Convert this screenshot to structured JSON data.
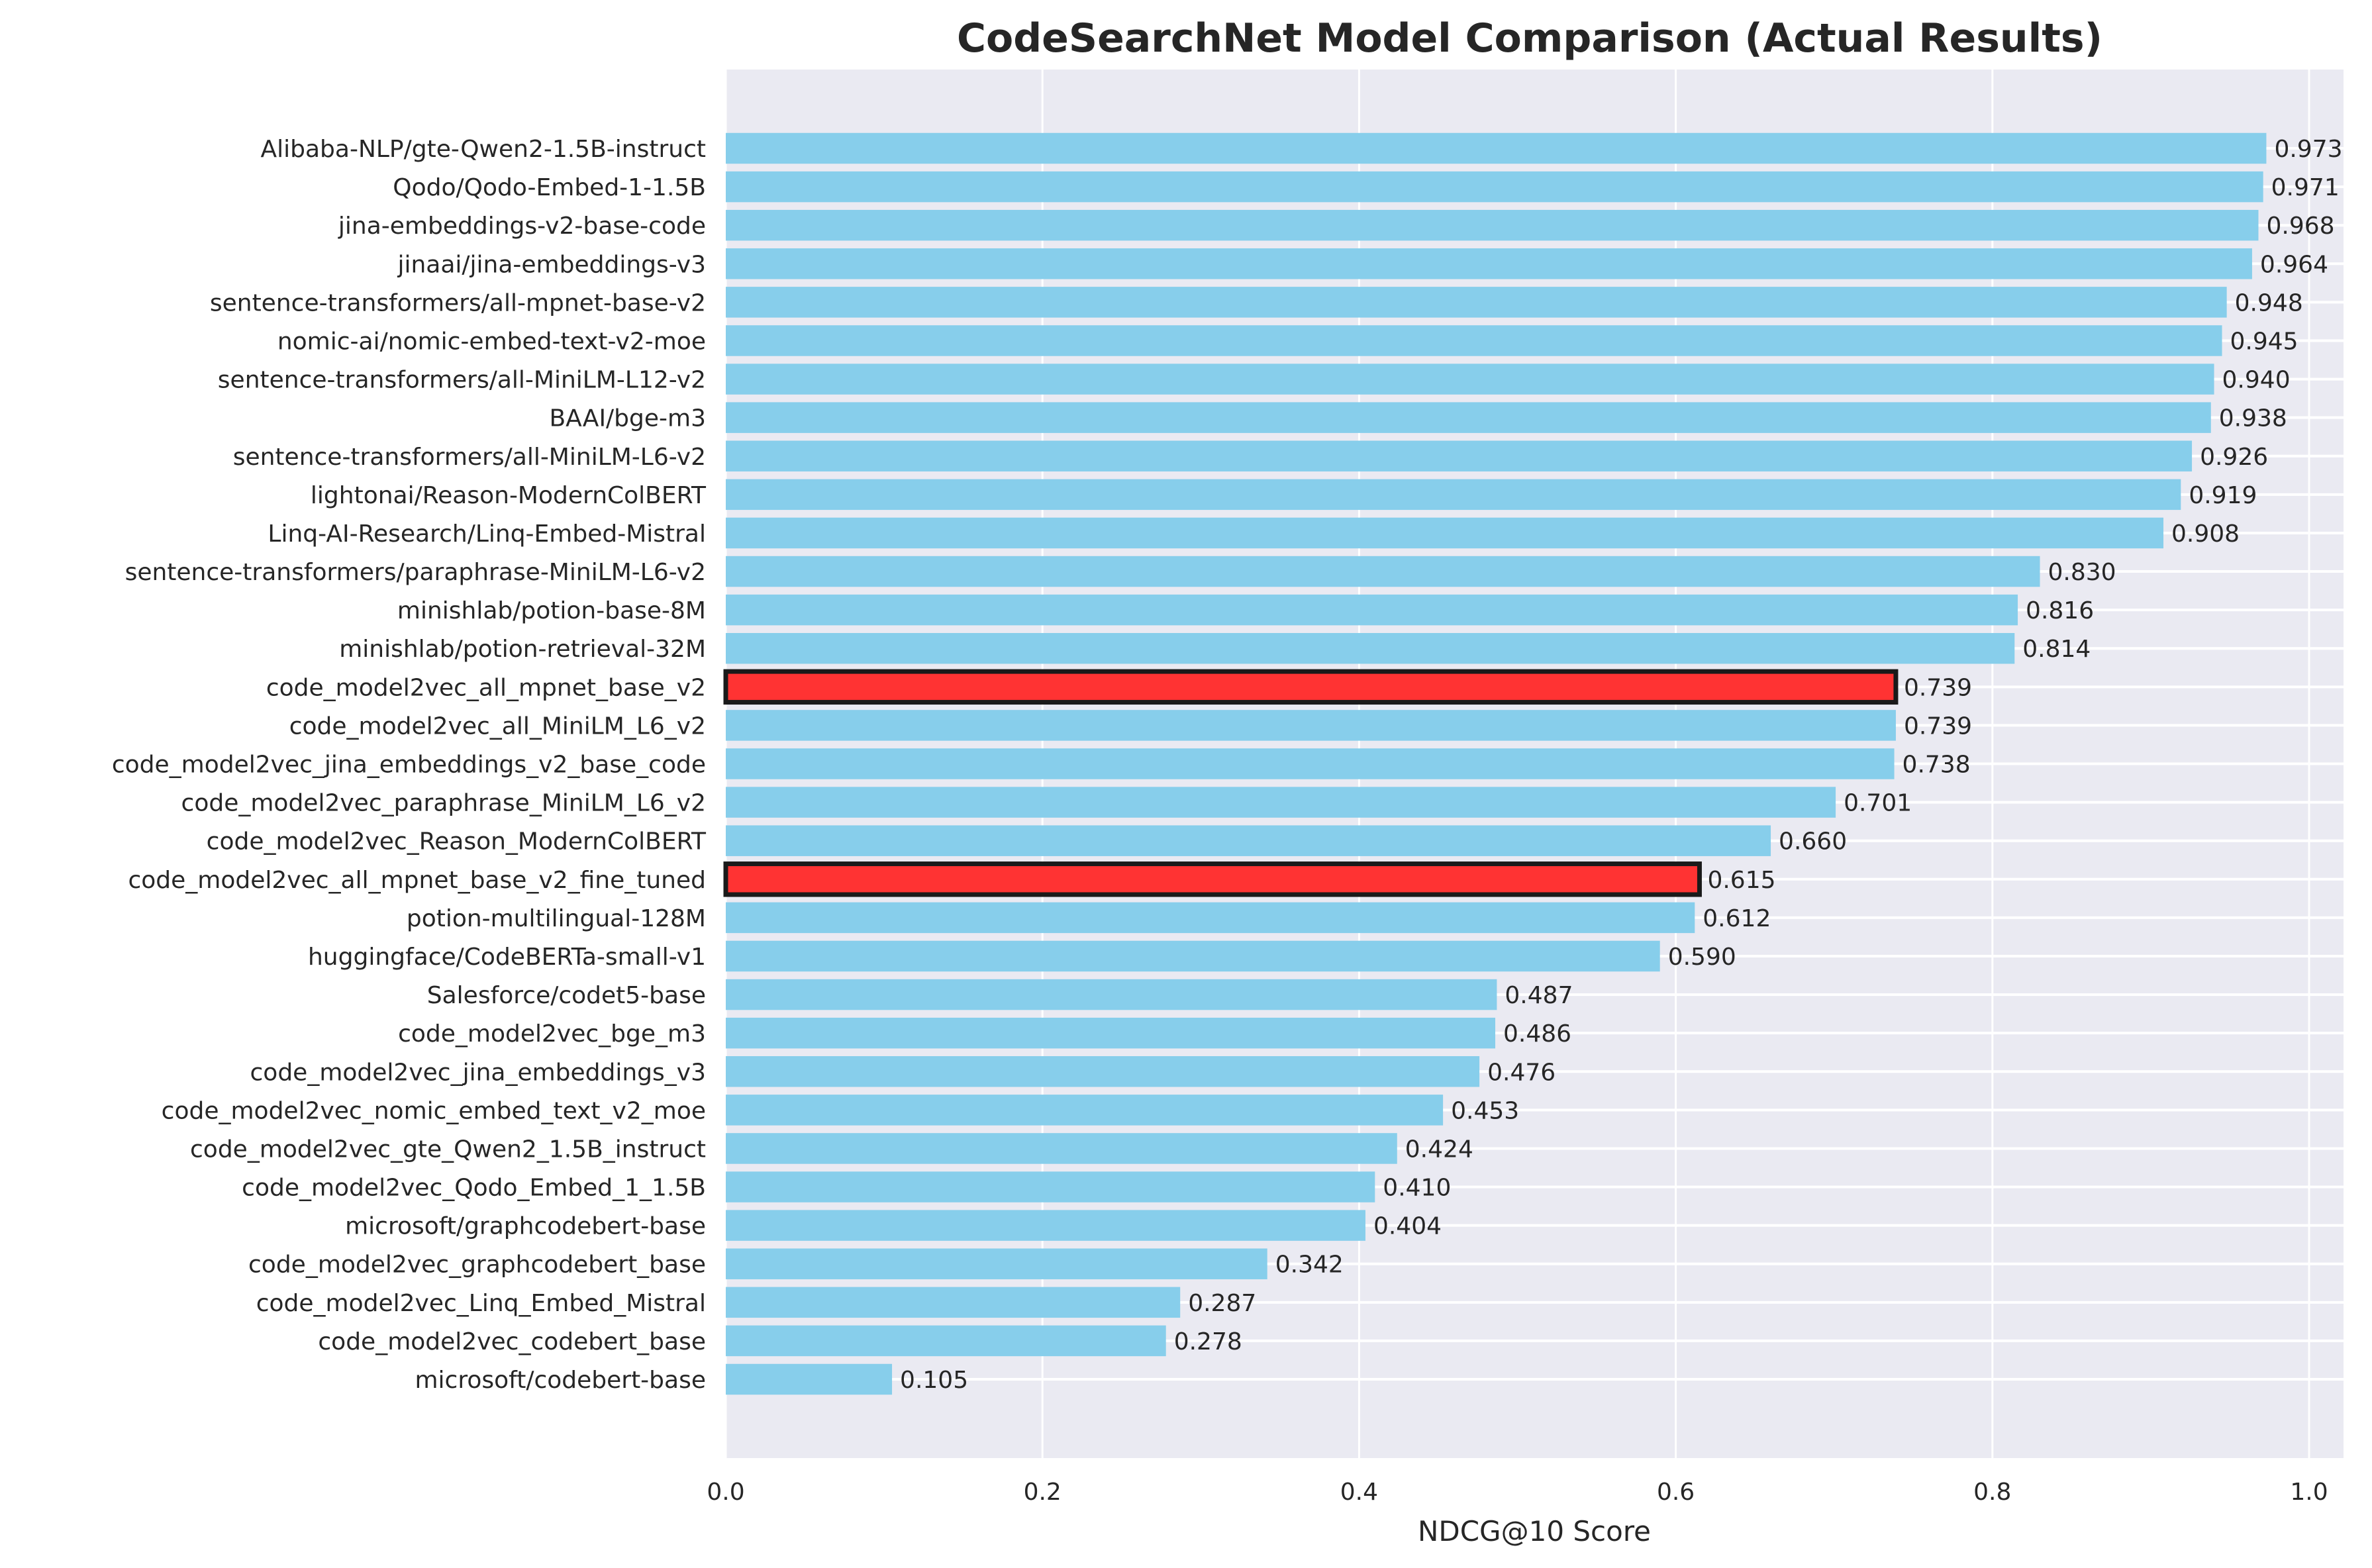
{
  "chart_data": {
    "type": "bar",
    "orientation": "horizontal",
    "title": "CodeSearchNet Model Comparison (Actual Results)",
    "xlabel": "NDCG@10 Score",
    "ylabel": "",
    "xlim": [
      0,
      1.02
    ],
    "xticks": [
      "0.0",
      "0.2",
      "0.4",
      "0.6",
      "0.8",
      "1.0"
    ],
    "grid": true,
    "colors": {
      "default": "#87CEEB",
      "highlight": "#FF3333",
      "highlight_edge": "#1a1a1a",
      "background": "#EAEAF2"
    },
    "categories": [
      "Alibaba-NLP/gte-Qwen2-1.5B-instruct",
      "Qodo/Qodo-Embed-1-1.5B",
      "jina-embeddings-v2-base-code",
      "jinaai/jina-embeddings-v3",
      "sentence-transformers/all-mpnet-base-v2",
      "nomic-ai/nomic-embed-text-v2-moe",
      "sentence-transformers/all-MiniLM-L12-v2",
      "BAAI/bge-m3",
      "sentence-transformers/all-MiniLM-L6-v2",
      "lightonai/Reason-ModernColBERT",
      "Linq-AI-Research/Linq-Embed-Mistral",
      "sentence-transformers/paraphrase-MiniLM-L6-v2",
      "minishlab/potion-base-8M",
      "minishlab/potion-retrieval-32M",
      "code_model2vec_all_mpnet_base_v2",
      "code_model2vec_all_MiniLM_L6_v2",
      "code_model2vec_jina_embeddings_v2_base_code",
      "code_model2vec_paraphrase_MiniLM_L6_v2",
      "code_model2vec_Reason_ModernColBERT",
      "code_model2vec_all_mpnet_base_v2_fine_tuned",
      "potion-multilingual-128M",
      "huggingface/CodeBERTa-small-v1",
      "Salesforce/codet5-base",
      "code_model2vec_bge_m3",
      "code_model2vec_jina_embeddings_v3",
      "code_model2vec_nomic_embed_text_v2_moe",
      "code_model2vec_gte_Qwen2_1.5B_instruct",
      "code_model2vec_Qodo_Embed_1_1.5B",
      "microsoft/graphcodebert-base",
      "code_model2vec_graphcodebert_base",
      "code_model2vec_Linq_Embed_Mistral",
      "code_model2vec_codebert_base",
      "microsoft/codebert-base"
    ],
    "values": [
      0.973,
      0.971,
      0.968,
      0.964,
      0.948,
      0.945,
      0.94,
      0.938,
      0.926,
      0.919,
      0.908,
      0.83,
      0.816,
      0.814,
      0.739,
      0.739,
      0.738,
      0.701,
      0.66,
      0.615,
      0.612,
      0.59,
      0.487,
      0.486,
      0.476,
      0.453,
      0.424,
      0.41,
      0.404,
      0.342,
      0.287,
      0.278,
      0.105
    ],
    "value_labels": [
      "0.973",
      "0.971",
      "0.968",
      "0.964",
      "0.948",
      "0.945",
      "0.940",
      "0.938",
      "0.926",
      "0.919",
      "0.908",
      "0.830",
      "0.816",
      "0.814",
      "0.739",
      "0.739",
      "0.738",
      "0.701",
      "0.660",
      "0.615",
      "0.612",
      "0.590",
      "0.487",
      "0.486",
      "0.476",
      "0.453",
      "0.424",
      "0.410",
      "0.404",
      "0.342",
      "0.287",
      "0.278",
      "0.105"
    ],
    "highlighted": [
      "code_model2vec_all_mpnet_base_v2",
      "code_model2vec_all_mpnet_base_v2_fine_tuned"
    ]
  }
}
